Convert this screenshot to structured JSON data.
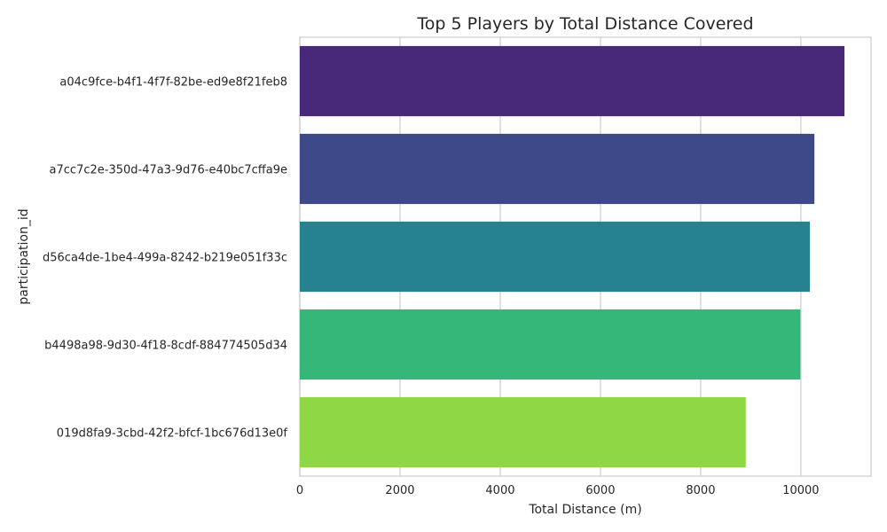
{
  "chart_data": {
    "type": "bar",
    "orientation": "horizontal",
    "title": "Top 5 Players by Total Distance Covered",
    "xlabel": "Total Distance (m)",
    "ylabel": "participation_id",
    "categories": [
      "a04c9fce-b4f1-4f7f-82be-ed9e8f21feb8",
      "a7cc7c2e-350d-47a3-9d76-e40bc7cffa9e",
      "d56ca4de-1be4-499a-8242-b219e051f33c",
      "b4498a98-9d30-4f18-8cdf-884774505d34",
      "019d8fa9-3cbd-42f2-bfcf-1bc676d13e0f"
    ],
    "values": [
      10870,
      10270,
      10180,
      9990,
      8900
    ],
    "colors": [
      "#482878",
      "#3e4989",
      "#26828e",
      "#35b779",
      "#8fd744"
    ],
    "xlim": [
      0,
      11400
    ],
    "xticks": [
      0,
      2000,
      4000,
      6000,
      8000,
      10000
    ],
    "grid": true,
    "legend": "none"
  }
}
